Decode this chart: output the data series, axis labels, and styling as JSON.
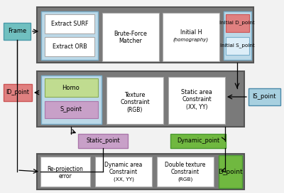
{
  "bg": "#f2f2f2",
  "gray_outer": "#7a7a7a",
  "light_blue_inner": "#bcd9e8",
  "white": "#ffffff",
  "salmon": "#e08080",
  "light_blue_box": "#a8d0e0",
  "teal": "#70c0c0",
  "green": "#70b840",
  "purple": "#c8a0c8",
  "green_label": "#88cc44",
  "white_inner": "#f8f8f8",
  "frame_label": "Frame",
  "extract_surf": "Extract SURF",
  "extract_orb": "Extract ORB",
  "brute_force1": "Brute-Force",
  "brute_force2": "Matcher",
  "initial_h1": "Initial H",
  "initial_h2": "(homography)",
  "init_d": "Initial D_point",
  "init_s": "Initial S_point",
  "id_point": "ID_point",
  "homo": "Homo",
  "s_point": "S_point",
  "texture1": "Texture",
  "texture2": "Constraint",
  "texture3": "(RGB)",
  "static_area1": "Static area",
  "static_area2": "Constraint",
  "static_area3": "(XX, YY)",
  "is_point": "IS_point",
  "static_point": "Static_point",
  "dynamic_point": "Dynamic_point",
  "reproj1": "Re-projection",
  "reproj2": "error",
  "dyn_area1": "Dynamic area",
  "dyn_area2": "Constraint",
  "dyn_area3": "(XX, YY)",
  "dbl_tex1": "Double texture",
  "dbl_tex2": "Constraint",
  "dbl_tex3": "(RGB)",
  "d_point": "D_point"
}
